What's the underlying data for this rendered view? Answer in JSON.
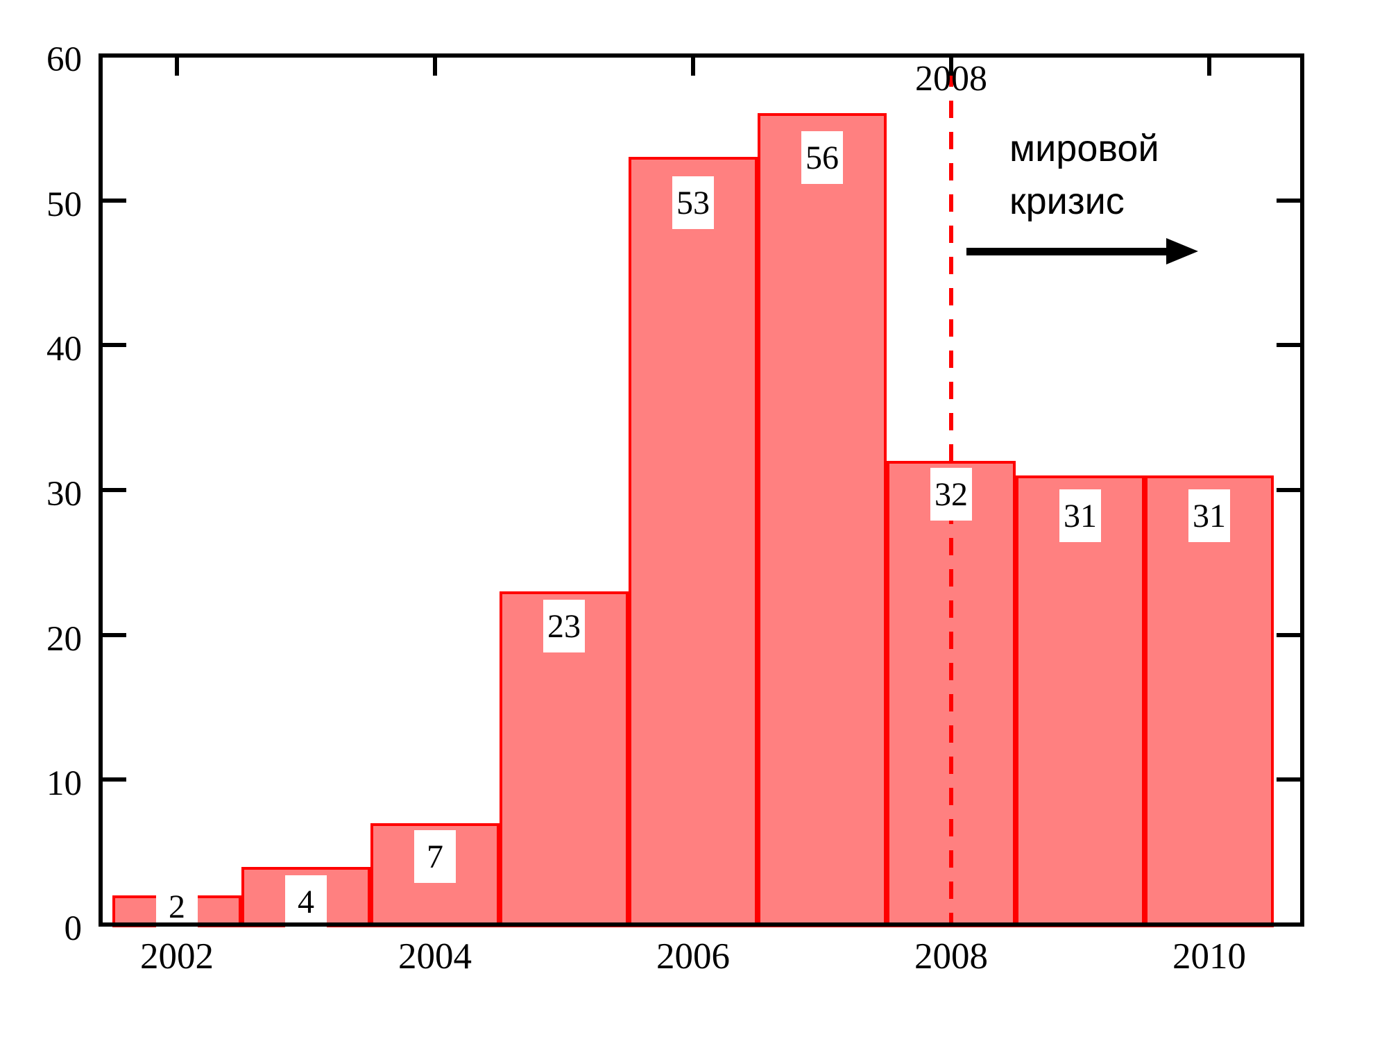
{
  "chart_data": {
    "type": "bar",
    "title": "",
    "xlabel": "",
    "ylabel": "",
    "categories": [
      2002,
      2003,
      2004,
      2005,
      2006,
      2007,
      2008,
      2009,
      2010
    ],
    "values": [
      2,
      4,
      7,
      23,
      53,
      56,
      32,
      31,
      31
    ],
    "value_labels": [
      "2",
      "4",
      "7",
      "23",
      "53",
      "56",
      "32",
      "31",
      "31"
    ],
    "x_tick_labels": [
      "2002",
      "2004",
      "2006",
      "2008",
      "2010"
    ],
    "x_tick_bar_indices": [
      0,
      2,
      4,
      6,
      8
    ],
    "y_tick_labels": [
      "0",
      "10",
      "20",
      "30",
      "40",
      "50",
      "60"
    ],
    "y_ticks": [
      0,
      10,
      20,
      30,
      40,
      50,
      60
    ],
    "ylim": [
      0,
      60
    ],
    "grid": false,
    "legend": "none",
    "bar_fill_color": "#ff8080",
    "bar_border_color": "#ff0000",
    "axis_color": "#000000",
    "value_label_dy": [
      -22,
      12,
      10,
      12,
      28,
      26,
      10,
      20,
      20
    ],
    "annotation": {
      "year_label": "2008",
      "line1": "мировой",
      "line2": "кризис",
      "dashed_line_year": 2008,
      "dashed_line_color": "#ff0000",
      "arrow_direction": "right",
      "arrow_color": "#000000"
    }
  }
}
